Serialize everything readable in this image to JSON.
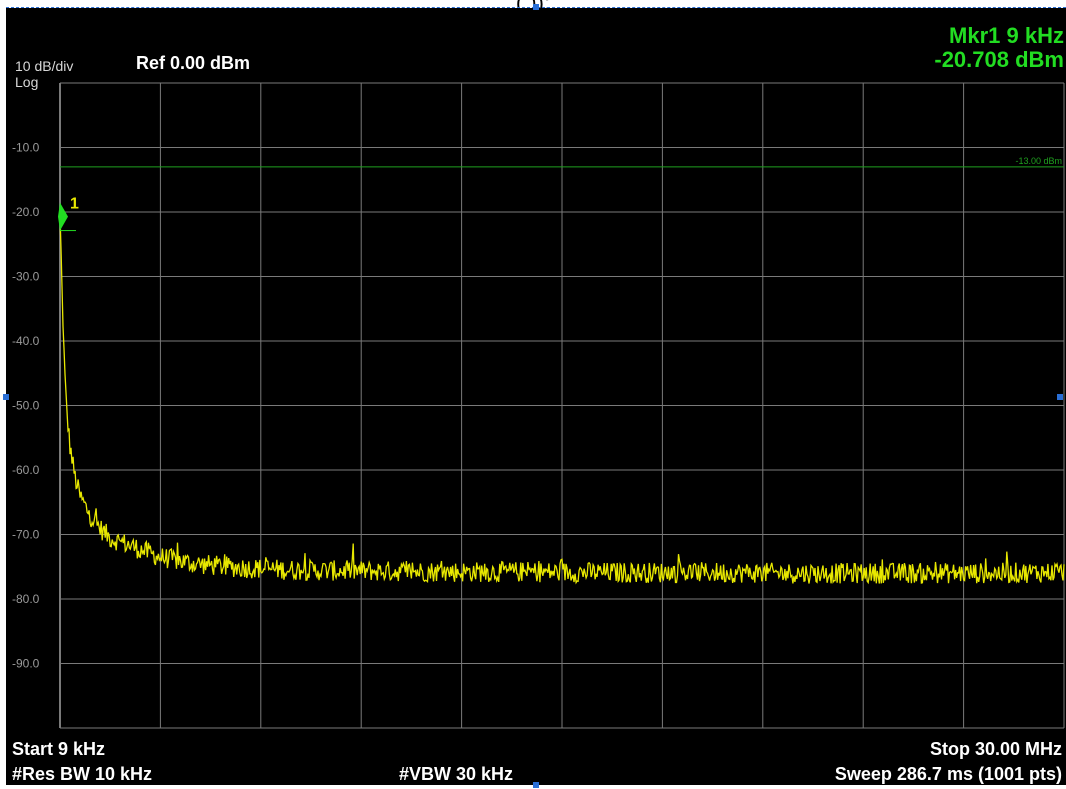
{
  "header": {
    "caption": "( ));",
    "scale": "10 dB/div",
    "scale_mode": "Log",
    "reference": "Ref 0.00 dBm"
  },
  "marker": {
    "frequency": "Mkr1 9 kHz",
    "level": "-20.708 dBm",
    "id": "1"
  },
  "footer": {
    "start": "Start 9 kHz",
    "stop": "Stop 30.00 MHz",
    "rbw": "#Res BW 10 kHz",
    "vbw": "#VBW 30 kHz",
    "sweep": "Sweep  286.7 ms (1001 pts)"
  },
  "colors": {
    "background": "#000000",
    "grid": "#7a7a7a",
    "trace": "#e8e800",
    "limit_line": "#1fa01f",
    "marker": "#22dd22",
    "text": "#ffffff",
    "handles": "#2a6fd6"
  },
  "chart_data": {
    "type": "line",
    "title": "",
    "xlabel": "",
    "ylabel": "",
    "x_unit": "MHz",
    "y_unit": "dBm",
    "xlim": [
      0.009,
      30.0
    ],
    "ylim": [
      -100,
      0
    ],
    "scale": "log (10 dB/div)",
    "grid": true,
    "y_tick_labels": [
      "-10.0",
      "-20.0",
      "-30.0",
      "-40.0",
      "-50.0",
      "-60.0",
      "-70.0",
      "-80.0",
      "-90.0"
    ],
    "y_ticks": [
      -10,
      -20,
      -30,
      -40,
      -50,
      -60,
      -70,
      -80,
      -90
    ],
    "limit_line": {
      "value": -13.0,
      "label": "-13.00 dBm"
    },
    "marker_point": {
      "x": 0.009,
      "y": -20.708,
      "label": "1"
    },
    "series": [
      {
        "values_x": [
          0.009,
          0.03,
          0.06,
          0.09,
          0.15,
          0.2,
          0.3,
          0.45,
          0.6,
          0.9,
          1.2,
          1.5,
          2.0,
          2.5,
          3.0,
          4.0,
          5.0,
          6.0,
          7.0,
          8.0,
          10.0,
          12.0,
          14.0,
          16.0,
          18.0,
          20.0,
          22.0,
          24.0,
          26.0,
          28.0,
          30.0
        ],
        "values_y": [
          -20.7,
          -24,
          -30,
          -36,
          -45,
          -50,
          -56,
          -61,
          -64,
          -67,
          -69,
          -70.5,
          -71.5,
          -72.5,
          -73.5,
          -74.5,
          -75,
          -75.3,
          -75.5,
          -75.6,
          -75.7,
          -75.8,
          -75.8,
          -75.9,
          -75.9,
          -75.9,
          -76.0,
          -76.0,
          -76.0,
          -76.0,
          -75.8
        ]
      }
    ]
  }
}
